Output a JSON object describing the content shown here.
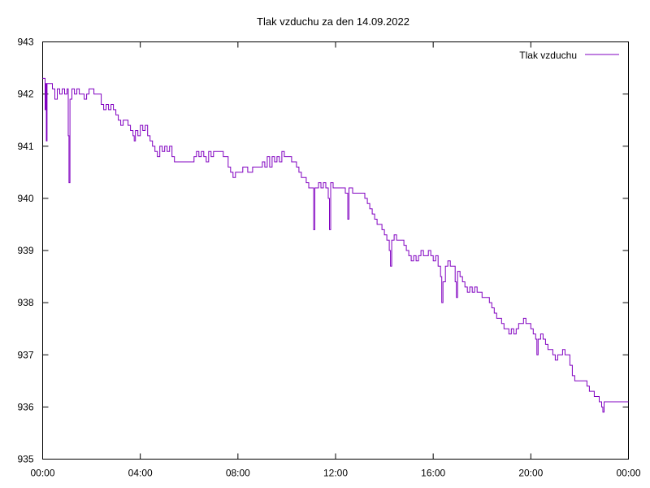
{
  "chart_data": {
    "type": "line",
    "title": "Tlak vzduchu za den 14.09.2022",
    "xlabel": "",
    "ylabel": "",
    "xlim_hours": [
      0,
      24
    ],
    "ylim": [
      935,
      943
    ],
    "x_ticks": [
      {
        "hour": 0,
        "label": "00:00"
      },
      {
        "hour": 4,
        "label": "04:00"
      },
      {
        "hour": 8,
        "label": "08:00"
      },
      {
        "hour": 12,
        "label": "12:00"
      },
      {
        "hour": 16,
        "label": "16:00"
      },
      {
        "hour": 20,
        "label": "20:00"
      },
      {
        "hour": 24,
        "label": "00:00"
      }
    ],
    "y_ticks": [
      935,
      936,
      937,
      938,
      939,
      940,
      941,
      942,
      943
    ],
    "grid": false,
    "legend_position": "top-right",
    "series": [
      {
        "name": "Tlak vzduchu",
        "color": "#8000c0",
        "points": [
          [
            0.0,
            942.3
          ],
          [
            0.08,
            942.3
          ],
          [
            0.1,
            941.7
          ],
          [
            0.12,
            942.2
          ],
          [
            0.15,
            941.1
          ],
          [
            0.18,
            942.2
          ],
          [
            0.3,
            942.2
          ],
          [
            0.4,
            942.1
          ],
          [
            0.5,
            941.9
          ],
          [
            0.6,
            942.1
          ],
          [
            0.7,
            942.0
          ],
          [
            0.8,
            942.1
          ],
          [
            0.9,
            942.0
          ],
          [
            1.0,
            942.1
          ],
          [
            1.05,
            941.2
          ],
          [
            1.08,
            940.3
          ],
          [
            1.12,
            941.9
          ],
          [
            1.2,
            942.1
          ],
          [
            1.3,
            942.0
          ],
          [
            1.4,
            942.1
          ],
          [
            1.5,
            942.0
          ],
          [
            1.6,
            942.0
          ],
          [
            1.7,
            941.9
          ],
          [
            1.8,
            942.0
          ],
          [
            1.9,
            942.1
          ],
          [
            2.0,
            942.1
          ],
          [
            2.1,
            942.0
          ],
          [
            2.3,
            942.0
          ],
          [
            2.4,
            941.8
          ],
          [
            2.5,
            941.7
          ],
          [
            2.6,
            941.8
          ],
          [
            2.7,
            941.7
          ],
          [
            2.8,
            941.8
          ],
          [
            2.9,
            941.7
          ],
          [
            3.0,
            941.6
          ],
          [
            3.1,
            941.5
          ],
          [
            3.2,
            941.4
          ],
          [
            3.3,
            941.5
          ],
          [
            3.5,
            941.4
          ],
          [
            3.6,
            941.3
          ],
          [
            3.7,
            941.2
          ],
          [
            3.75,
            941.1
          ],
          [
            3.8,
            941.3
          ],
          [
            3.9,
            941.2
          ],
          [
            4.0,
            941.4
          ],
          [
            4.1,
            941.3
          ],
          [
            4.2,
            941.4
          ],
          [
            4.3,
            941.2
          ],
          [
            4.4,
            941.1
          ],
          [
            4.5,
            941.0
          ],
          [
            4.6,
            940.9
          ],
          [
            4.7,
            940.8
          ],
          [
            4.8,
            941.0
          ],
          [
            4.9,
            940.9
          ],
          [
            5.0,
            941.0
          ],
          [
            5.1,
            940.9
          ],
          [
            5.2,
            941.0
          ],
          [
            5.3,
            940.8
          ],
          [
            5.4,
            940.7
          ],
          [
            5.6,
            940.7
          ],
          [
            5.8,
            940.7
          ],
          [
            6.0,
            940.7
          ],
          [
            6.2,
            940.8
          ],
          [
            6.3,
            940.9
          ],
          [
            6.4,
            940.8
          ],
          [
            6.5,
            940.9
          ],
          [
            6.6,
            940.8
          ],
          [
            6.7,
            940.7
          ],
          [
            6.8,
            940.9
          ],
          [
            6.9,
            940.8
          ],
          [
            7.0,
            940.9
          ],
          [
            7.2,
            940.9
          ],
          [
            7.4,
            940.8
          ],
          [
            7.6,
            940.6
          ],
          [
            7.7,
            940.5
          ],
          [
            7.8,
            940.4
          ],
          [
            7.9,
            940.5
          ],
          [
            8.0,
            940.5
          ],
          [
            8.2,
            940.6
          ],
          [
            8.4,
            940.5
          ],
          [
            8.6,
            940.6
          ],
          [
            8.8,
            940.6
          ],
          [
            9.0,
            940.7
          ],
          [
            9.1,
            940.6
          ],
          [
            9.2,
            940.8
          ],
          [
            9.3,
            940.6
          ],
          [
            9.4,
            940.8
          ],
          [
            9.5,
            940.7
          ],
          [
            9.6,
            940.8
          ],
          [
            9.7,
            940.7
          ],
          [
            9.8,
            940.9
          ],
          [
            9.9,
            940.8
          ],
          [
            10.0,
            940.8
          ],
          [
            10.2,
            940.7
          ],
          [
            10.4,
            940.6
          ],
          [
            10.5,
            940.5
          ],
          [
            10.6,
            940.4
          ],
          [
            10.8,
            940.3
          ],
          [
            10.9,
            940.2
          ],
          [
            11.0,
            940.2
          ],
          [
            11.1,
            939.4
          ],
          [
            11.15,
            940.2
          ],
          [
            11.3,
            940.3
          ],
          [
            11.4,
            940.2
          ],
          [
            11.5,
            940.3
          ],
          [
            11.6,
            940.2
          ],
          [
            11.7,
            940.0
          ],
          [
            11.75,
            939.4
          ],
          [
            11.8,
            940.3
          ],
          [
            11.9,
            940.2
          ],
          [
            12.0,
            940.2
          ],
          [
            12.2,
            940.2
          ],
          [
            12.4,
            940.1
          ],
          [
            12.5,
            939.6
          ],
          [
            12.55,
            940.2
          ],
          [
            12.7,
            940.1
          ],
          [
            12.8,
            940.1
          ],
          [
            13.0,
            940.1
          ],
          [
            13.1,
            940.1
          ],
          [
            13.2,
            940.0
          ],
          [
            13.3,
            939.9
          ],
          [
            13.4,
            939.8
          ],
          [
            13.5,
            939.7
          ],
          [
            13.6,
            939.6
          ],
          [
            13.7,
            939.5
          ],
          [
            13.8,
            939.5
          ],
          [
            13.9,
            939.4
          ],
          [
            14.0,
            939.3
          ],
          [
            14.1,
            939.2
          ],
          [
            14.2,
            939.0
          ],
          [
            14.25,
            938.7
          ],
          [
            14.3,
            939.2
          ],
          [
            14.4,
            939.3
          ],
          [
            14.5,
            939.2
          ],
          [
            14.7,
            939.2
          ],
          [
            14.8,
            939.1
          ],
          [
            14.9,
            939.0
          ],
          [
            15.0,
            938.9
          ],
          [
            15.1,
            938.8
          ],
          [
            15.2,
            938.9
          ],
          [
            15.3,
            938.8
          ],
          [
            15.4,
            938.9
          ],
          [
            15.5,
            939.0
          ],
          [
            15.6,
            938.9
          ],
          [
            15.8,
            939.0
          ],
          [
            15.9,
            938.9
          ],
          [
            16.0,
            938.8
          ],
          [
            16.1,
            938.9
          ],
          [
            16.2,
            938.7
          ],
          [
            16.3,
            938.5
          ],
          [
            16.35,
            938.0
          ],
          [
            16.4,
            938.4
          ],
          [
            16.5,
            938.7
          ],
          [
            16.6,
            938.8
          ],
          [
            16.7,
            938.7
          ],
          [
            16.8,
            938.7
          ],
          [
            16.9,
            938.4
          ],
          [
            16.95,
            938.1
          ],
          [
            17.0,
            938.6
          ],
          [
            17.1,
            938.5
          ],
          [
            17.2,
            938.4
          ],
          [
            17.3,
            938.3
          ],
          [
            17.4,
            938.2
          ],
          [
            17.5,
            938.3
          ],
          [
            17.6,
            938.2
          ],
          [
            17.7,
            938.3
          ],
          [
            17.8,
            938.2
          ],
          [
            18.0,
            938.1
          ],
          [
            18.2,
            938.1
          ],
          [
            18.3,
            938.0
          ],
          [
            18.4,
            937.9
          ],
          [
            18.5,
            937.8
          ],
          [
            18.6,
            937.7
          ],
          [
            18.7,
            937.7
          ],
          [
            18.8,
            937.6
          ],
          [
            18.9,
            937.5
          ],
          [
            19.0,
            937.5
          ],
          [
            19.1,
            937.4
          ],
          [
            19.2,
            937.5
          ],
          [
            19.3,
            937.4
          ],
          [
            19.4,
            937.5
          ],
          [
            19.5,
            937.6
          ],
          [
            19.6,
            937.6
          ],
          [
            19.7,
            937.7
          ],
          [
            19.8,
            937.6
          ],
          [
            19.9,
            937.6
          ],
          [
            20.0,
            937.5
          ],
          [
            20.1,
            937.4
          ],
          [
            20.2,
            937.3
          ],
          [
            20.25,
            937.0
          ],
          [
            20.3,
            937.3
          ],
          [
            20.4,
            937.4
          ],
          [
            20.5,
            937.3
          ],
          [
            20.6,
            937.2
          ],
          [
            20.7,
            937.1
          ],
          [
            20.8,
            937.1
          ],
          [
            20.9,
            937.0
          ],
          [
            21.0,
            936.9
          ],
          [
            21.1,
            937.0
          ],
          [
            21.2,
            937.0
          ],
          [
            21.3,
            937.1
          ],
          [
            21.4,
            937.0
          ],
          [
            21.5,
            937.0
          ],
          [
            21.6,
            936.8
          ],
          [
            21.7,
            936.6
          ],
          [
            21.8,
            936.5
          ],
          [
            22.0,
            936.5
          ],
          [
            22.2,
            936.5
          ],
          [
            22.3,
            936.4
          ],
          [
            22.4,
            936.3
          ],
          [
            22.5,
            936.3
          ],
          [
            22.6,
            936.2
          ],
          [
            22.7,
            936.2
          ],
          [
            22.8,
            936.1
          ],
          [
            22.9,
            936.0
          ],
          [
            22.95,
            935.9
          ],
          [
            23.0,
            936.1
          ],
          [
            23.2,
            936.1
          ],
          [
            23.4,
            936.1
          ],
          [
            23.6,
            936.1
          ],
          [
            23.8,
            936.1
          ],
          [
            24.0,
            936.1
          ]
        ]
      }
    ]
  }
}
